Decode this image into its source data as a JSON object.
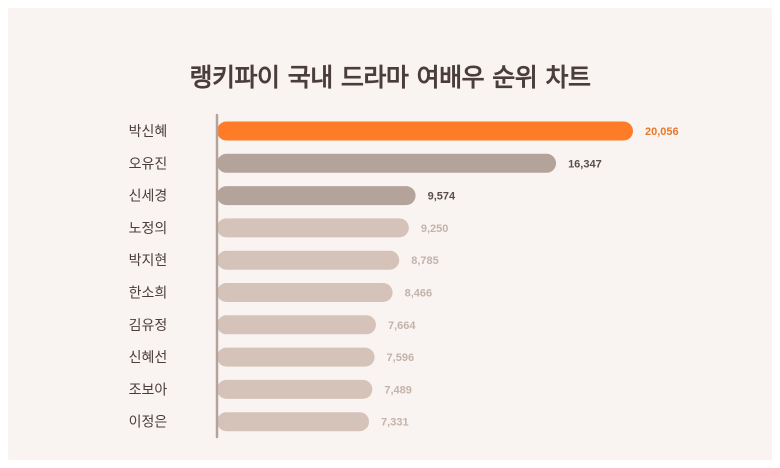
{
  "title": "랭키파이 국내 드라마 여배우 순위 차트",
  "colors": {
    "background": "#f9f4f2",
    "highlight_bar": "#fe7c28",
    "dark_bar": "#b3a39b",
    "light_bar": "#d5c3b9",
    "axis": "#b3a39b",
    "highlight_label": "#e8772a",
    "dark_label": "#5a4e4a",
    "light_label": "#c4b3a9",
    "category_text": "#4a3d3a"
  },
  "chart_data": {
    "type": "bar",
    "orientation": "horizontal",
    "title": "랭키파이 국내 드라마 여배우 순위 차트",
    "categories": [
      "박신혜",
      "오유진",
      "신세경",
      "노정의",
      "박지현",
      "한소희",
      "김유정",
      "신혜선",
      "조보아",
      "이정은"
    ],
    "values": [
      20056,
      16347,
      9574,
      9250,
      8785,
      8466,
      7664,
      7596,
      7489,
      7331
    ],
    "value_labels": [
      "20,056",
      "16,347",
      "9,574",
      "9,250",
      "8,785",
      "8,466",
      "7,664",
      "7,596",
      "7,489",
      "7,331"
    ],
    "bar_styles": [
      "highlight",
      "dark",
      "dark",
      "light",
      "light",
      "light",
      "light",
      "light",
      "light",
      "light"
    ],
    "grid": false,
    "legend": "none"
  }
}
